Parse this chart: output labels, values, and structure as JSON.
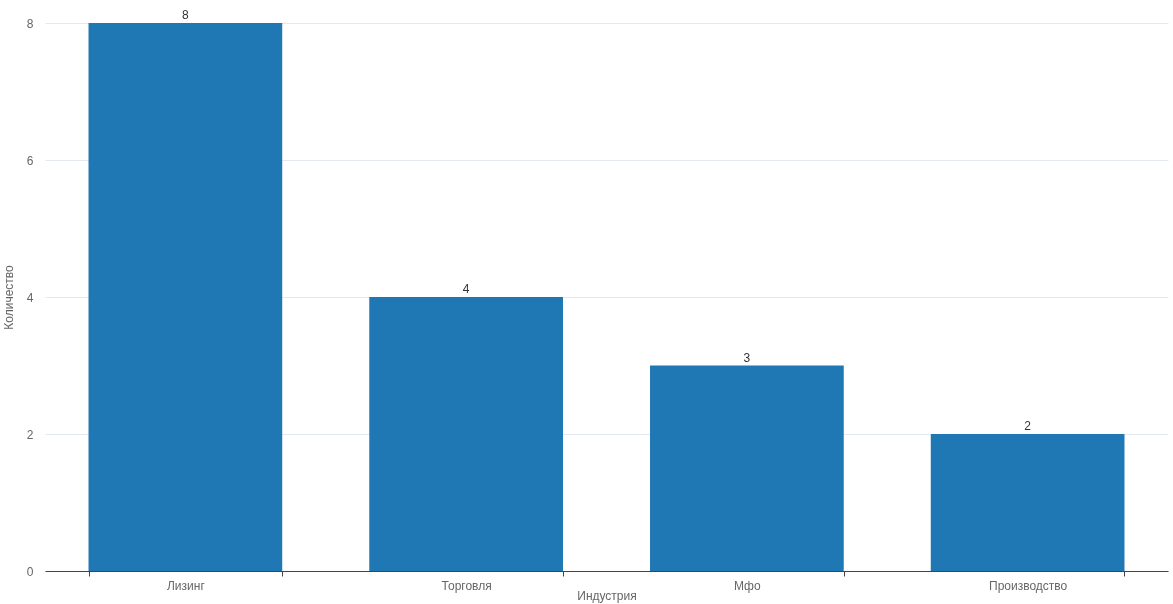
{
  "chart_data": {
    "type": "bar",
    "xlabel": "Индустрия",
    "ylabel": "Количество",
    "categories": [
      "Лизинг",
      "Торговля",
      "Мфо",
      "Производство"
    ],
    "values": [
      8,
      4,
      3,
      2
    ],
    "color": "#1f77b4",
    "ylim": [
      0,
      8
    ],
    "yticks": [
      0,
      2,
      4,
      6,
      8
    ],
    "grid": "y",
    "data_labels": true
  }
}
